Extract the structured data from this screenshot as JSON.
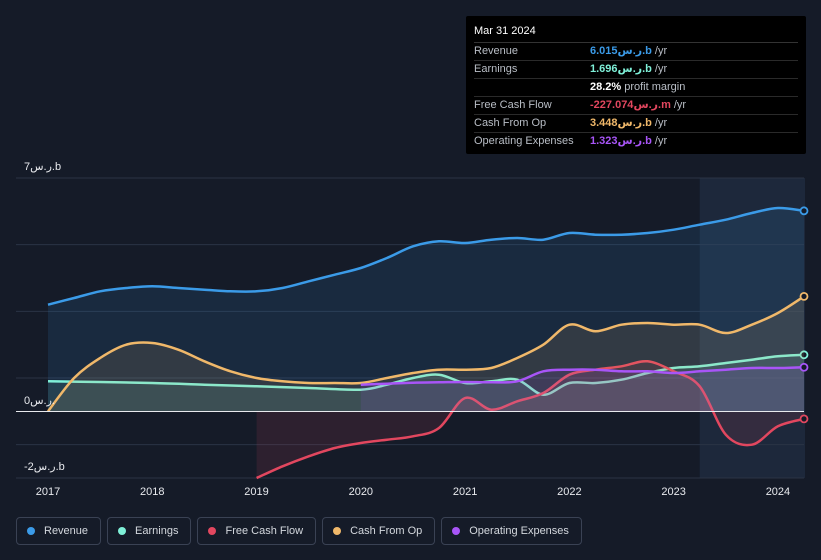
{
  "tooltip": {
    "date": "Mar 31 2024",
    "rows": [
      {
        "label": "Revenue",
        "value": "6.015ر.س.b",
        "suffix": "/yr",
        "color": "#3b9be8"
      },
      {
        "label": "Earnings",
        "value": "1.696ر.س.b",
        "suffix": "/yr",
        "color": "#7ff0d8"
      },
      {
        "label": "",
        "value": "28.2%",
        "suffix": "profit margin",
        "color": "#ffffff"
      },
      {
        "label": "Free Cash Flow",
        "value": "-227.074ر.س.m",
        "suffix": "/yr",
        "color": "#e2475f"
      },
      {
        "label": "Cash From Op",
        "value": "3.448ر.س.b",
        "suffix": "/yr",
        "color": "#f0b86a"
      },
      {
        "label": "Operating Expenses",
        "value": "1.323ر.س.b",
        "suffix": "/yr",
        "color": "#a855f7"
      }
    ]
  },
  "chart_data": {
    "type": "area",
    "title": "",
    "xlabel": "",
    "ylabel": "",
    "y_unit_labels": {
      "top": "7ر.س.b",
      "zero": "0ر.س.",
      "bottom": "-2ر.س.b"
    },
    "ylim": [
      -2,
      7
    ],
    "xlim": [
      2017.0,
      2024.25
    ],
    "x_ticks": [
      "2017",
      "2018",
      "2019",
      "2020",
      "2021",
      "2022",
      "2023",
      "2024"
    ],
    "highlight_from": 2023.25,
    "series": [
      {
        "name": "Revenue",
        "color": "#3b9be8",
        "x": [
          2017.0,
          2017.25,
          2017.5,
          2017.75,
          2018.0,
          2018.25,
          2018.5,
          2018.75,
          2019.0,
          2019.25,
          2019.5,
          2019.75,
          2020.0,
          2020.25,
          2020.5,
          2020.75,
          2021.0,
          2021.25,
          2021.5,
          2021.75,
          2022.0,
          2022.25,
          2022.5,
          2022.75,
          2023.0,
          2023.25,
          2023.5,
          2023.75,
          2024.0,
          2024.25
        ],
        "values": [
          3.2,
          3.4,
          3.6,
          3.7,
          3.75,
          3.7,
          3.65,
          3.6,
          3.6,
          3.7,
          3.9,
          4.1,
          4.3,
          4.6,
          4.95,
          5.1,
          5.05,
          5.15,
          5.2,
          5.15,
          5.35,
          5.3,
          5.3,
          5.35,
          5.45,
          5.6,
          5.75,
          5.95,
          6.1,
          6.015
        ]
      },
      {
        "name": "Earnings",
        "color": "#7ff0d8",
        "x": [
          2017.0,
          2017.5,
          2018.0,
          2018.5,
          2019.0,
          2019.5,
          2020.0,
          2020.25,
          2020.5,
          2020.75,
          2021.0,
          2021.25,
          2021.5,
          2021.75,
          2022.0,
          2022.25,
          2022.5,
          2022.75,
          2023.0,
          2023.25,
          2023.5,
          2023.75,
          2024.0,
          2024.25
        ],
        "values": [
          0.9,
          0.88,
          0.85,
          0.8,
          0.75,
          0.7,
          0.65,
          0.8,
          1.0,
          1.1,
          0.85,
          0.9,
          0.95,
          0.5,
          0.85,
          0.85,
          0.95,
          1.15,
          1.3,
          1.35,
          1.45,
          1.55,
          1.65,
          1.696
        ]
      },
      {
        "name": "Free Cash Flow",
        "color": "#e2475f",
        "x": [
          2019.0,
          2019.25,
          2019.5,
          2019.75,
          2020.0,
          2020.25,
          2020.5,
          2020.75,
          2021.0,
          2021.25,
          2021.5,
          2021.75,
          2022.0,
          2022.25,
          2022.5,
          2022.75,
          2023.0,
          2023.25,
          2023.5,
          2023.75,
          2024.0,
          2024.25
        ],
        "values": [
          -2.0,
          -1.65,
          -1.35,
          -1.1,
          -0.95,
          -0.85,
          -0.75,
          -0.5,
          0.4,
          0.05,
          0.3,
          0.55,
          1.1,
          1.25,
          1.35,
          1.5,
          1.2,
          0.75,
          -0.7,
          -1.0,
          -0.45,
          -0.227
        ]
      },
      {
        "name": "Cash From Op",
        "color": "#f0b86a",
        "x": [
          2017.0,
          2017.25,
          2017.5,
          2017.75,
          2018.0,
          2018.25,
          2018.5,
          2018.75,
          2019.0,
          2019.25,
          2019.5,
          2019.75,
          2020.0,
          2020.25,
          2020.5,
          2020.75,
          2021.0,
          2021.25,
          2021.5,
          2021.75,
          2022.0,
          2022.25,
          2022.5,
          2022.75,
          2023.0,
          2023.25,
          2023.5,
          2023.75,
          2024.0,
          2024.25
        ],
        "values": [
          0.0,
          1.0,
          1.6,
          2.0,
          2.05,
          1.85,
          1.5,
          1.2,
          1.0,
          0.9,
          0.85,
          0.85,
          0.85,
          1.0,
          1.15,
          1.25,
          1.25,
          1.3,
          1.6,
          2.0,
          2.6,
          2.4,
          2.6,
          2.65,
          2.6,
          2.6,
          2.35,
          2.6,
          2.95,
          3.448
        ]
      },
      {
        "name": "Operating Expenses",
        "color": "#a855f7",
        "x": [
          2020.0,
          2020.25,
          2020.5,
          2020.75,
          2021.0,
          2021.25,
          2021.5,
          2021.75,
          2022.0,
          2022.25,
          2022.5,
          2022.75,
          2023.0,
          2023.25,
          2023.5,
          2023.75,
          2024.0,
          2024.25
        ],
        "values": [
          0.8,
          0.83,
          0.86,
          0.87,
          0.88,
          0.87,
          0.9,
          1.2,
          1.25,
          1.25,
          1.2,
          1.2,
          1.15,
          1.2,
          1.25,
          1.3,
          1.3,
          1.323
        ]
      }
    ]
  },
  "legend": [
    {
      "label": "Revenue",
      "color": "#3b9be8"
    },
    {
      "label": "Earnings",
      "color": "#7ff0d8"
    },
    {
      "label": "Free Cash Flow",
      "color": "#e2475f"
    },
    {
      "label": "Cash From Op",
      "color": "#f0b86a"
    },
    {
      "label": "Operating Expenses",
      "color": "#a855f7"
    }
  ]
}
